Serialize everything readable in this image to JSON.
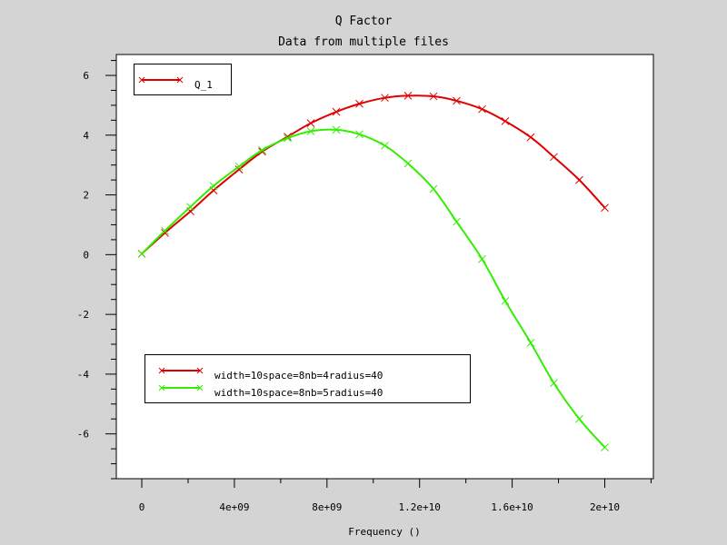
{
  "colors": {
    "background": "#d4d4d4",
    "plot_area": "#ffffff",
    "series_1": "#e00000",
    "series_2": "#33ee00",
    "axis": "#000000"
  },
  "top_legend": {
    "label": "Q_1"
  },
  "chart_data": {
    "type": "line",
    "title": "Q Factor",
    "subtitle": "Data from multiple files",
    "xlabel": "Frequency ()",
    "ylabel": "",
    "xlim": [
      -1100000000.0,
      22100000000.0
    ],
    "ylim": [
      -7.5,
      6.7
    ],
    "x_ticks": [
      0,
      4000000000.0,
      8000000000.0,
      12000000000.0,
      16000000000.0,
      20000000000.0
    ],
    "x_tick_labels": [
      "0",
      "4e+09",
      "8e+09",
      "1.2e+10",
      "1.6e+10",
      "2e+10"
    ],
    "y_ticks": [
      -6,
      -4,
      -2,
      0,
      2,
      4,
      6
    ],
    "y_tick_labels": [
      "-6",
      "-4",
      "-2",
      "0",
      "2",
      "4",
      "6"
    ],
    "grid": false,
    "legend_placement": "lower-left",
    "x": [
      0,
      1000000000.0,
      2100000000.0,
      3100000000.0,
      4200000000.0,
      5200000000.0,
      6300000000.0,
      7300000000.0,
      8400000000.0,
      9400000000.0,
      10500000000.0,
      11500000000.0,
      12600000000.0,
      13600000000.0,
      14700000000.0,
      15700000000.0,
      16800000000.0,
      17800000000.0,
      18900000000.0,
      20000000000.0
    ],
    "series": [
      {
        "name": "width=10space=8nb=4radius=40",
        "values": [
          0.03,
          0.73,
          1.45,
          2.15,
          2.85,
          3.45,
          3.95,
          4.4,
          4.78,
          5.05,
          5.25,
          5.32,
          5.3,
          5.15,
          4.87,
          4.47,
          3.93,
          3.27,
          2.5,
          1.57
        ]
      },
      {
        "name": "width=10space=8nb=5radius=40",
        "values": [
          0.03,
          0.8,
          1.6,
          2.3,
          2.95,
          3.5,
          3.9,
          4.13,
          4.18,
          4.03,
          3.65,
          3.05,
          2.2,
          1.1,
          -0.15,
          -1.55,
          -2.95,
          -4.3,
          -5.5,
          -6.45
        ]
      }
    ]
  }
}
